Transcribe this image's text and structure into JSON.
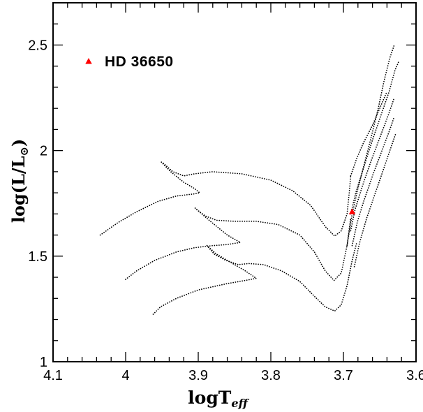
{
  "chart_data": {
    "type": "scatter",
    "title": "",
    "xlabel": {
      "main": "logT",
      "sub": "eff"
    },
    "ylabel": {
      "main": "log(L/L",
      "sym": "⊙",
      "close": ")"
    },
    "xlim": [
      4.1,
      3.6
    ],
    "ylim": [
      1.0,
      2.7
    ],
    "x_ticks": [
      4.1,
      4.0,
      3.9,
      3.8,
      3.7,
      3.6
    ],
    "x_tick_labels": [
      "4.1",
      "4",
      "3.9",
      "3.8",
      "3.7",
      "3.6"
    ],
    "y_ticks": [
      1.0,
      1.5,
      2.0,
      2.5
    ],
    "y_tick_labels": [
      "1",
      "1.5",
      "2",
      "2.5"
    ],
    "x_minor_step": 0.02,
    "y_minor_step": 0.1,
    "grid": false,
    "legend": {
      "position": "top-left",
      "label": "HD 36650",
      "marker": "triangle",
      "color": "#ff0000"
    },
    "star": {
      "name": "HD 36650",
      "x": 3.688,
      "y": 1.71,
      "color": "#ff0000",
      "marker": "triangle"
    },
    "tracks": [
      {
        "style": "dotted",
        "points": [
          [
            4.035,
            1.6
          ],
          [
            4.01,
            1.66
          ],
          [
            3.985,
            1.71
          ],
          [
            3.955,
            1.76
          ],
          [
            3.93,
            1.785
          ],
          [
            3.905,
            1.795
          ],
          [
            3.898,
            1.8
          ],
          [
            3.905,
            1.82
          ],
          [
            3.92,
            1.85
          ],
          [
            3.938,
            1.9
          ],
          [
            3.952,
            1.95
          ]
        ]
      },
      {
        "style": "dotted",
        "points": [
          [
            3.948,
            1.94
          ],
          [
            3.935,
            1.9
          ],
          [
            3.92,
            1.88
          ],
          [
            3.905,
            1.89
          ],
          [
            3.88,
            1.9
          ],
          [
            3.84,
            1.89
          ],
          [
            3.8,
            1.86
          ],
          [
            3.77,
            1.81
          ],
          [
            3.745,
            1.74
          ],
          [
            3.725,
            1.64
          ],
          [
            3.712,
            1.595
          ],
          [
            3.703,
            1.62
          ],
          [
            3.695,
            1.7
          ],
          [
            3.692,
            1.8
          ],
          [
            3.69,
            1.88
          ]
        ]
      },
      {
        "style": "dotted",
        "points": [
          [
            4.0,
            1.39
          ],
          [
            3.985,
            1.43
          ],
          [
            3.96,
            1.48
          ],
          [
            3.93,
            1.52
          ],
          [
            3.905,
            1.54
          ],
          [
            3.88,
            1.55
          ],
          [
            3.86,
            1.555
          ],
          [
            3.842,
            1.565
          ],
          [
            3.86,
            1.6
          ],
          [
            3.885,
            1.67
          ],
          [
            3.905,
            1.73
          ]
        ]
      },
      {
        "style": "dotted",
        "points": [
          [
            3.902,
            1.72
          ],
          [
            3.89,
            1.69
          ],
          [
            3.875,
            1.67
          ],
          [
            3.85,
            1.665
          ],
          [
            3.82,
            1.665
          ],
          [
            3.79,
            1.65
          ],
          [
            3.76,
            1.6
          ],
          [
            3.74,
            1.52
          ],
          [
            3.725,
            1.43
          ],
          [
            3.713,
            1.385
          ],
          [
            3.703,
            1.42
          ],
          [
            3.695,
            1.55
          ],
          [
            3.69,
            1.68
          ]
        ]
      },
      {
        "style": "dotted",
        "points": [
          [
            3.962,
            1.225
          ],
          [
            3.952,
            1.26
          ],
          [
            3.93,
            1.3
          ],
          [
            3.9,
            1.34
          ],
          [
            3.86,
            1.37
          ],
          [
            3.835,
            1.385
          ],
          [
            3.82,
            1.395
          ],
          [
            3.835,
            1.43
          ],
          [
            3.855,
            1.47
          ],
          [
            3.875,
            1.51
          ],
          [
            3.888,
            1.55
          ]
        ]
      },
      {
        "style": "dotted",
        "points": [
          [
            3.888,
            1.55
          ],
          [
            3.878,
            1.51
          ],
          [
            3.862,
            1.48
          ],
          [
            3.845,
            1.46
          ],
          [
            3.83,
            1.465
          ],
          [
            3.81,
            1.46
          ],
          [
            3.785,
            1.43
          ],
          [
            3.76,
            1.38
          ],
          [
            3.74,
            1.31
          ],
          [
            3.725,
            1.26
          ],
          [
            3.712,
            1.24
          ],
          [
            3.703,
            1.27
          ],
          [
            3.695,
            1.36
          ],
          [
            3.688,
            1.48
          ],
          [
            3.682,
            1.56
          ]
        ]
      },
      {
        "style": "dotted",
        "points": [
          [
            3.695,
            1.55
          ],
          [
            3.688,
            1.7
          ],
          [
            3.68,
            1.82
          ],
          [
            3.671,
            1.94
          ],
          [
            3.662,
            2.06
          ],
          [
            3.652,
            2.2
          ],
          [
            3.644,
            2.33
          ],
          [
            3.636,
            2.44
          ],
          [
            3.63,
            2.5
          ]
        ]
      },
      {
        "style": "dotted",
        "points": [
          [
            3.69,
            1.7
          ],
          [
            3.683,
            1.8
          ],
          [
            3.672,
            1.92
          ],
          [
            3.66,
            2.05
          ],
          [
            3.648,
            2.17
          ],
          [
            3.637,
            2.28
          ],
          [
            3.629,
            2.38
          ],
          [
            3.624,
            2.42
          ]
        ]
      },
      {
        "style": "dotted",
        "points": [
          [
            3.69,
            1.62
          ],
          [
            3.684,
            1.72
          ],
          [
            3.674,
            1.83
          ],
          [
            3.662,
            1.95
          ],
          [
            3.65,
            2.06
          ],
          [
            3.638,
            2.17
          ],
          [
            3.63,
            2.25
          ]
        ]
      },
      {
        "style": "dotted",
        "points": [
          [
            3.688,
            1.55
          ],
          [
            3.681,
            1.66
          ],
          [
            3.672,
            1.76
          ],
          [
            3.66,
            1.88
          ],
          [
            3.648,
            1.99
          ],
          [
            3.637,
            2.09
          ],
          [
            3.63,
            2.16
          ]
        ]
      },
      {
        "style": "dotted",
        "points": [
          [
            3.685,
            1.45
          ],
          [
            3.678,
            1.56
          ],
          [
            3.668,
            1.68
          ],
          [
            3.656,
            1.8
          ],
          [
            3.645,
            1.91
          ],
          [
            3.634,
            2.02
          ],
          [
            3.628,
            2.08
          ]
        ]
      },
      {
        "style": "dotted",
        "points": [
          [
            3.69,
            1.88
          ],
          [
            3.682,
            1.96
          ],
          [
            3.672,
            2.04
          ],
          [
            3.66,
            2.12
          ],
          [
            3.65,
            2.2
          ],
          [
            3.64,
            2.28
          ]
        ]
      }
    ]
  }
}
